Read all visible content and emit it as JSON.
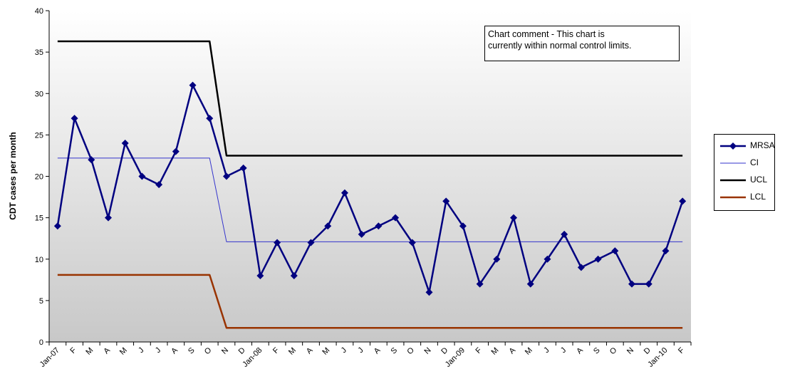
{
  "chart_data": {
    "type": "line",
    "ylabel": "CDT cases per month",
    "ylim": [
      0,
      40
    ],
    "yticks": [
      0,
      5,
      10,
      15,
      20,
      25,
      30,
      35,
      40
    ],
    "categories": [
      "Jan-07",
      "F",
      "M",
      "A",
      "M",
      "J",
      "J",
      "A",
      "S",
      "O",
      "N",
      "D",
      "Jan-08",
      "F",
      "M",
      "A",
      "M",
      "J",
      "J",
      "A",
      "S",
      "O",
      "N",
      "D",
      "Jan-09",
      "F",
      "M",
      "A",
      "M",
      "J",
      "J",
      "A",
      "S",
      "O",
      "N",
      "D",
      "Jan-10",
      "F"
    ],
    "series": [
      {
        "name": "MRSA",
        "color": "#000080",
        "marker": "diamond",
        "values": [
          14,
          27,
          22,
          15,
          24,
          20,
          19,
          23,
          31,
          27,
          20,
          21,
          8,
          12,
          8,
          12,
          14,
          18,
          13,
          14,
          15,
          12,
          6,
          17,
          14,
          7,
          10,
          15,
          7,
          10,
          13,
          9,
          10,
          11,
          7,
          7,
          11,
          17
        ]
      },
      {
        "name": "CI",
        "color": "#3333cc",
        "values": [
          22.2,
          22.2,
          22.2,
          22.2,
          22.2,
          22.2,
          22.2,
          22.2,
          22.2,
          22.2,
          12.1,
          12.1,
          12.1,
          12.1,
          12.1,
          12.1,
          12.1,
          12.1,
          12.1,
          12.1,
          12.1,
          12.1,
          12.1,
          12.1,
          12.1,
          12.1,
          12.1,
          12.1,
          12.1,
          12.1,
          12.1,
          12.1,
          12.1,
          12.1,
          12.1,
          12.1,
          12.1,
          12.1
        ]
      },
      {
        "name": "UCL",
        "color": "#000000",
        "values": [
          36.3,
          36.3,
          36.3,
          36.3,
          36.3,
          36.3,
          36.3,
          36.3,
          36.3,
          36.3,
          22.5,
          22.5,
          22.5,
          22.5,
          22.5,
          22.5,
          22.5,
          22.5,
          22.5,
          22.5,
          22.5,
          22.5,
          22.5,
          22.5,
          22.5,
          22.5,
          22.5,
          22.5,
          22.5,
          22.5,
          22.5,
          22.5,
          22.5,
          22.5,
          22.5,
          22.5,
          22.5,
          22.5
        ]
      },
      {
        "name": "LCL",
        "color": "#993300",
        "values": [
          8.1,
          8.1,
          8.1,
          8.1,
          8.1,
          8.1,
          8.1,
          8.1,
          8.1,
          8.1,
          1.7,
          1.7,
          1.7,
          1.7,
          1.7,
          1.7,
          1.7,
          1.7,
          1.7,
          1.7,
          1.7,
          1.7,
          1.7,
          1.7,
          1.7,
          1.7,
          1.7,
          1.7,
          1.7,
          1.7,
          1.7,
          1.7,
          1.7,
          1.7,
          1.7,
          1.7,
          1.7,
          1.7
        ]
      }
    ],
    "annotation": "Chart comment - This chart is currently within normal control limits.",
    "annotation_lines": [
      "Chart comment - This chart is",
      "currently within normal control limits."
    ],
    "legend_position": "right",
    "grid": false,
    "background": "gradient-gray"
  }
}
